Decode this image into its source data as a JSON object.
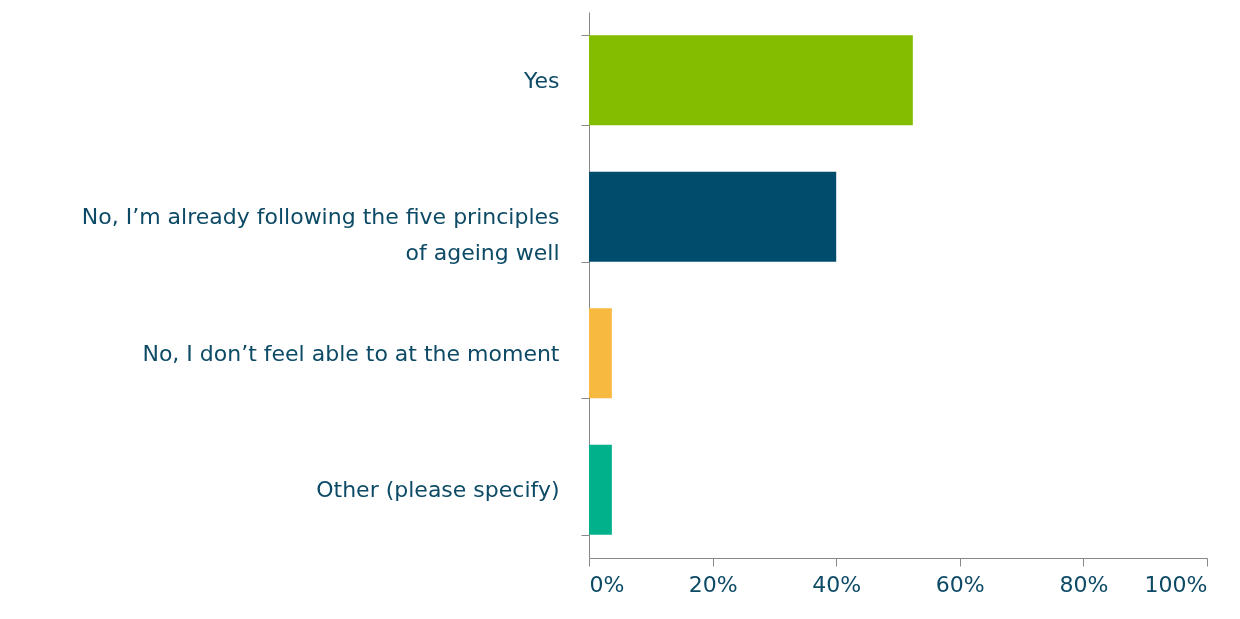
{
  "chart_data": {
    "type": "bar",
    "orientation": "horizontal",
    "categories": [
      "Yes",
      "No, I’m already following the five principles\nof ageing well",
      "No, I don’t feel able to at the moment",
      "Other (please specify)"
    ],
    "values": [
      52.4,
      40.0,
      3.7,
      3.7
    ],
    "colors": [
      "#84bd00",
      "#004c6c",
      "#f8b940",
      "#00b18c"
    ],
    "xlim": [
      0,
      100
    ],
    "xticks": [
      {
        "value": 0,
        "label": "0%"
      },
      {
        "value": 20,
        "label": "20%"
      },
      {
        "value": 40,
        "label": "40%"
      },
      {
        "value": 60,
        "label": "60%"
      },
      {
        "value": 80,
        "label": "80%"
      },
      {
        "value": 100,
        "label": "100%"
      }
    ],
    "grid": false
  }
}
